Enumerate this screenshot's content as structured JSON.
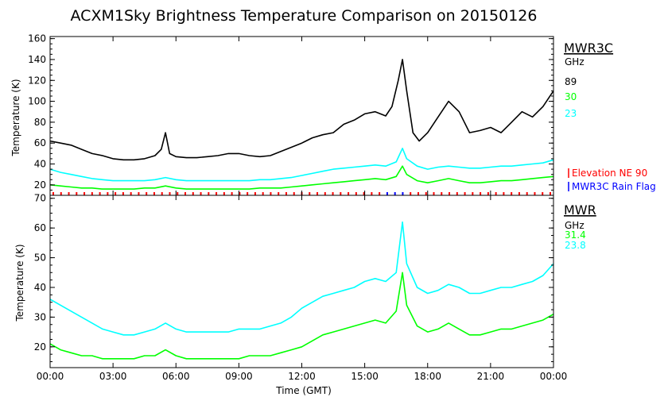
{
  "title": "ACXM1Sky Brightness Temperature Comparison on 20150126",
  "colors": {
    "black": "#000000",
    "green": "#00ff00",
    "cyan": "#00ffff",
    "red": "#ff0000",
    "blue": "#0000ff"
  },
  "chart_data": [
    {
      "type": "line",
      "ylabel": "Temperature (K)",
      "xlim": [
        0,
        24
      ],
      "ylim": [
        10,
        162
      ],
      "yticks": [
        "20",
        "40",
        "60",
        "80",
        "100",
        "120",
        "140",
        "160"
      ],
      "legend": {
        "title": "MWR3C",
        "unit": "GHz"
      },
      "flags": [
        "Elevation NE 90",
        "MWR3C Rain Flag"
      ],
      "series": [
        {
          "name": "89",
          "color": "#000000",
          "x": [
            0,
            0.5,
            1,
            1.5,
            2,
            2.5,
            3,
            3.5,
            4,
            4.5,
            5,
            5.3,
            5.5,
            5.7,
            6,
            6.5,
            7,
            7.5,
            8,
            8.5,
            9,
            9.5,
            10,
            10.5,
            11,
            11.5,
            12,
            12.5,
            13,
            13.5,
            14,
            14.5,
            15,
            15.5,
            16,
            16.3,
            16.6,
            16.8,
            17,
            17.3,
            17.6,
            18,
            18.5,
            19,
            19.5,
            20,
            20.5,
            21,
            21.5,
            22,
            22.5,
            23,
            23.5,
            24
          ],
          "y": [
            62,
            60,
            58,
            54,
            50,
            48,
            45,
            44,
            44,
            45,
            48,
            54,
            70,
            50,
            47,
            46,
            46,
            47,
            48,
            50,
            50,
            48,
            47,
            48,
            52,
            56,
            60,
            65,
            68,
            70,
            78,
            82,
            88,
            90,
            86,
            95,
            120,
            140,
            110,
            70,
            62,
            70,
            85,
            100,
            90,
            70,
            72,
            75,
            70,
            80,
            90,
            85,
            95,
            110
          ]
        },
        {
          "name": "30",
          "color": "#00ff00",
          "x": [
            0,
            0.5,
            1,
            1.5,
            2,
            2.5,
            3,
            3.5,
            4,
            4.5,
            5,
            5.5,
            6,
            6.5,
            7,
            7.5,
            8,
            8.5,
            9,
            9.5,
            10,
            10.5,
            11,
            11.5,
            12,
            12.5,
            13,
            13.5,
            14,
            14.5,
            15,
            15.5,
            16,
            16.5,
            16.8,
            17,
            17.5,
            18,
            18.5,
            19,
            19.5,
            20,
            20.5,
            21,
            21.5,
            22,
            22.5,
            23,
            23.5,
            24
          ],
          "y": [
            20,
            19,
            18,
            17,
            17,
            16,
            16,
            16,
            16,
            17,
            17,
            19,
            17,
            16,
            16,
            16,
            16,
            16,
            16,
            16,
            17,
            17,
            17,
            18,
            19,
            20,
            21,
            22,
            23,
            24,
            25,
            26,
            25,
            28,
            38,
            30,
            24,
            22,
            24,
            26,
            24,
            22,
            22,
            23,
            24,
            24,
            25,
            26,
            27,
            28
          ]
        },
        {
          "name": "23",
          "color": "#00ffff",
          "x": [
            0,
            0.5,
            1,
            1.5,
            2,
            2.5,
            3,
            3.5,
            4,
            4.5,
            5,
            5.5,
            6,
            6.5,
            7,
            7.5,
            8,
            8.5,
            9,
            9.5,
            10,
            10.5,
            11,
            11.5,
            12,
            12.5,
            13,
            13.5,
            14,
            14.5,
            15,
            15.5,
            16,
            16.5,
            16.8,
            17,
            17.5,
            18,
            18.5,
            19,
            19.5,
            20,
            20.5,
            21,
            21.5,
            22,
            22.5,
            23,
            23.5,
            24
          ],
          "y": [
            35,
            32,
            30,
            28,
            26,
            25,
            24,
            24,
            24,
            24,
            25,
            27,
            25,
            24,
            24,
            24,
            24,
            24,
            24,
            24,
            25,
            25,
            26,
            27,
            29,
            31,
            33,
            35,
            36,
            37,
            38,
            39,
            38,
            42,
            55,
            45,
            38,
            35,
            37,
            38,
            37,
            36,
            36,
            37,
            38,
            38,
            39,
            40,
            41,
            44
          ]
        }
      ]
    },
    {
      "type": "line",
      "ylabel": "Temperature (K)",
      "xlabel": "Time (GMT)",
      "xlim": [
        0,
        24
      ],
      "ylim": [
        13,
        71
      ],
      "yticks": [
        "20",
        "30",
        "40",
        "50",
        "60",
        "70"
      ],
      "xticks": [
        "00:00",
        "03:00",
        "06:00",
        "09:00",
        "12:00",
        "15:00",
        "18:00",
        "21:00",
        "00:00"
      ],
      "legend": {
        "title": "MWR",
        "unit": "GHz"
      },
      "series": [
        {
          "name": "31.4",
          "color": "#00ff00",
          "x": [
            0,
            0.5,
            1,
            1.5,
            2,
            2.5,
            3,
            3.5,
            4,
            4.5,
            5,
            5.5,
            6,
            6.5,
            7,
            7.5,
            8,
            8.5,
            9,
            9.5,
            10,
            10.5,
            11,
            11.5,
            12,
            12.5,
            13,
            13.5,
            14,
            14.5,
            15,
            15.5,
            16,
            16.5,
            16.8,
            17,
            17.5,
            18,
            18.5,
            19,
            19.5,
            20,
            20.5,
            21,
            21.5,
            22,
            22.5,
            23,
            23.5,
            24
          ],
          "y": [
            21,
            19,
            18,
            17,
            17,
            16,
            16,
            16,
            16,
            17,
            17,
            19,
            17,
            16,
            16,
            16,
            16,
            16,
            16,
            17,
            17,
            17,
            18,
            19,
            20,
            22,
            24,
            25,
            26,
            27,
            28,
            29,
            28,
            32,
            45,
            34,
            27,
            25,
            26,
            28,
            26,
            24,
            24,
            25,
            26,
            26,
            27,
            28,
            29,
            31
          ]
        },
        {
          "name": "23.8",
          "color": "#00ffff",
          "x": [
            0,
            0.5,
            1,
            1.5,
            2,
            2.5,
            3,
            3.5,
            4,
            4.5,
            5,
            5.5,
            6,
            6.5,
            7,
            7.5,
            8,
            8.5,
            9,
            9.5,
            10,
            10.5,
            11,
            11.5,
            12,
            12.5,
            13,
            13.5,
            14,
            14.5,
            15,
            15.5,
            16,
            16.5,
            16.8,
            17,
            17.5,
            18,
            18.5,
            19,
            19.5,
            20,
            20.5,
            21,
            21.5,
            22,
            22.5,
            23,
            23.5,
            24
          ],
          "y": [
            36,
            34,
            32,
            30,
            28,
            26,
            25,
            24,
            24,
            25,
            26,
            28,
            26,
            25,
            25,
            25,
            25,
            25,
            26,
            26,
            26,
            27,
            28,
            30,
            33,
            35,
            37,
            38,
            39,
            40,
            42,
            43,
            42,
            45,
            62,
            48,
            40,
            38,
            39,
            41,
            40,
            38,
            38,
            39,
            40,
            40,
            41,
            42,
            44,
            48
          ]
        }
      ]
    }
  ]
}
